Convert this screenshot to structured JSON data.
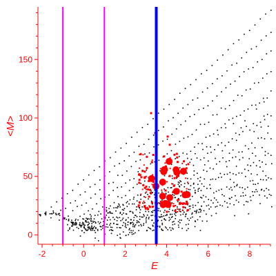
{
  "chart_data": {
    "type": "scatter",
    "title": "",
    "xlabel": "E",
    "ylabel": "<M>",
    "xlim": [
      -2.2,
      9.0
    ],
    "ylim": [
      -8,
      195
    ],
    "x_ticks": [
      "-2",
      "0",
      "2",
      "4",
      "6",
      "8"
    ],
    "y_ticks": [
      "0",
      "50",
      "100",
      "150"
    ],
    "x_tick_values": [
      -2,
      0,
      2,
      4,
      6,
      8
    ],
    "y_tick_values": [
      0,
      50,
      100,
      150
    ],
    "grid": false,
    "colors": {
      "axis": "#ff0000",
      "points": "#000000",
      "highlight": "#ff0000",
      "magenta_line": "#ff00ff",
      "blue_line": "#0000ff"
    },
    "vertical_lines": [
      {
        "x": -1.0,
        "color": "#ff00ff"
      },
      {
        "x": 1.0,
        "color": "#ff00ff"
      },
      {
        "x": 3.5,
        "color": "#0000ff"
      }
    ],
    "bands": [
      {
        "x0": -2.1,
        "x1": 9.0,
        "y0": 17,
        "y1": 193,
        "peak": 0.35
      },
      {
        "x0": -1.6,
        "x1": 9.0,
        "y0": 15,
        "y1": 174,
        "peak": 0.55
      },
      {
        "x0": -1.2,
        "x1": 9.0,
        "y0": 12,
        "y1": 158,
        "peak": 0.8
      },
      {
        "x0": -0.8,
        "x1": 9.0,
        "y0": 10,
        "y1": 140,
        "peak": 1.0
      },
      {
        "x0": -0.4,
        "x1": 9.0,
        "y0": 8,
        "y1": 122,
        "peak": 1.2
      },
      {
        "x0": 0.0,
        "x1": 9.0,
        "y0": 6,
        "y1": 104,
        "peak": 1.4
      },
      {
        "x0": 0.5,
        "x1": 9.0,
        "y0": 5,
        "y1": 86,
        "peak": 1.6
      },
      {
        "x0": 1.0,
        "x1": 9.0,
        "y0": 4,
        "y1": 68,
        "peak": 1.9
      },
      {
        "x0": 1.6,
        "x1": 9.0,
        "y0": 4,
        "y1": 52,
        "peak": 2.1
      },
      {
        "x0": 2.2,
        "x1": 9.0,
        "y0": 5,
        "y1": 38,
        "peak": 2.3
      }
    ],
    "low_arc": [
      [
        -2.1,
        17
      ],
      [
        -1.8,
        19
      ],
      [
        -1.5,
        20
      ],
      [
        -1.2,
        18
      ],
      [
        -1.0,
        15
      ],
      [
        -0.8,
        13
      ],
      [
        -0.6,
        11
      ],
      [
        -0.4,
        10
      ],
      [
        -0.2,
        9
      ],
      [
        0.0,
        8
      ],
      [
        0.2,
        7
      ],
      [
        0.4,
        6
      ],
      [
        0.6,
        6
      ],
      [
        -1.9,
        18
      ],
      [
        -1.6,
        19
      ],
      [
        -1.3,
        18
      ],
      [
        -0.9,
        14
      ],
      [
        -0.5,
        10
      ],
      [
        -0.1,
        8
      ],
      [
        0.3,
        6
      ]
    ],
    "red_cluster": {
      "x_min": 2.6,
      "x_max": 5.0,
      "y_min": 12,
      "y_max": 105
    }
  }
}
